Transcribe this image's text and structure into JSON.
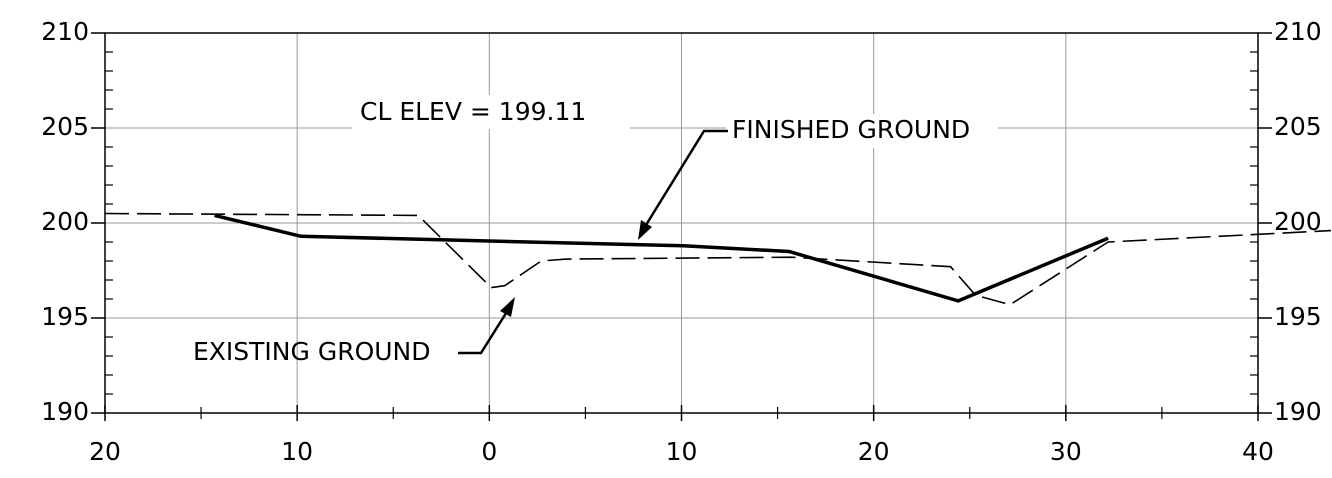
{
  "chart_data": {
    "type": "line",
    "annotations": [
      "CL ELEV = 199.11"
    ],
    "xlim": [
      -20,
      40
    ],
    "xticks": [
      {
        "value": -20,
        "label": "20"
      },
      {
        "value": -10,
        "label": "10"
      },
      0,
      10,
      20,
      30,
      40
    ],
    "ylim": [
      190,
      210
    ],
    "yticks": [
      190,
      195,
      200,
      205,
      210
    ],
    "grid": true,
    "series": [
      {
        "name": "FINISHED GROUND",
        "color": "#000000",
        "style": "solid",
        "x": [
          -14.3,
          -9.8,
          10.1,
          15.6,
          24.4,
          32.2
        ],
        "values": [
          200.4,
          199.3,
          198.8,
          198.5,
          195.9,
          199.2
        ]
      },
      {
        "name": "EXISTING GROUND",
        "color": "#000000",
        "style": "dashed",
        "x": [
          -20,
          -3.7,
          0.1,
          0.8,
          2.7,
          4.0,
          15.7,
          24.0,
          25.3,
          27.1,
          32.2,
          43.8
        ],
        "values": [
          200.5,
          200.4,
          196.6,
          196.7,
          198.0,
          198.1,
          198.2,
          197.7,
          196.2,
          195.7,
          199.0,
          199.6
        ]
      }
    ]
  }
}
